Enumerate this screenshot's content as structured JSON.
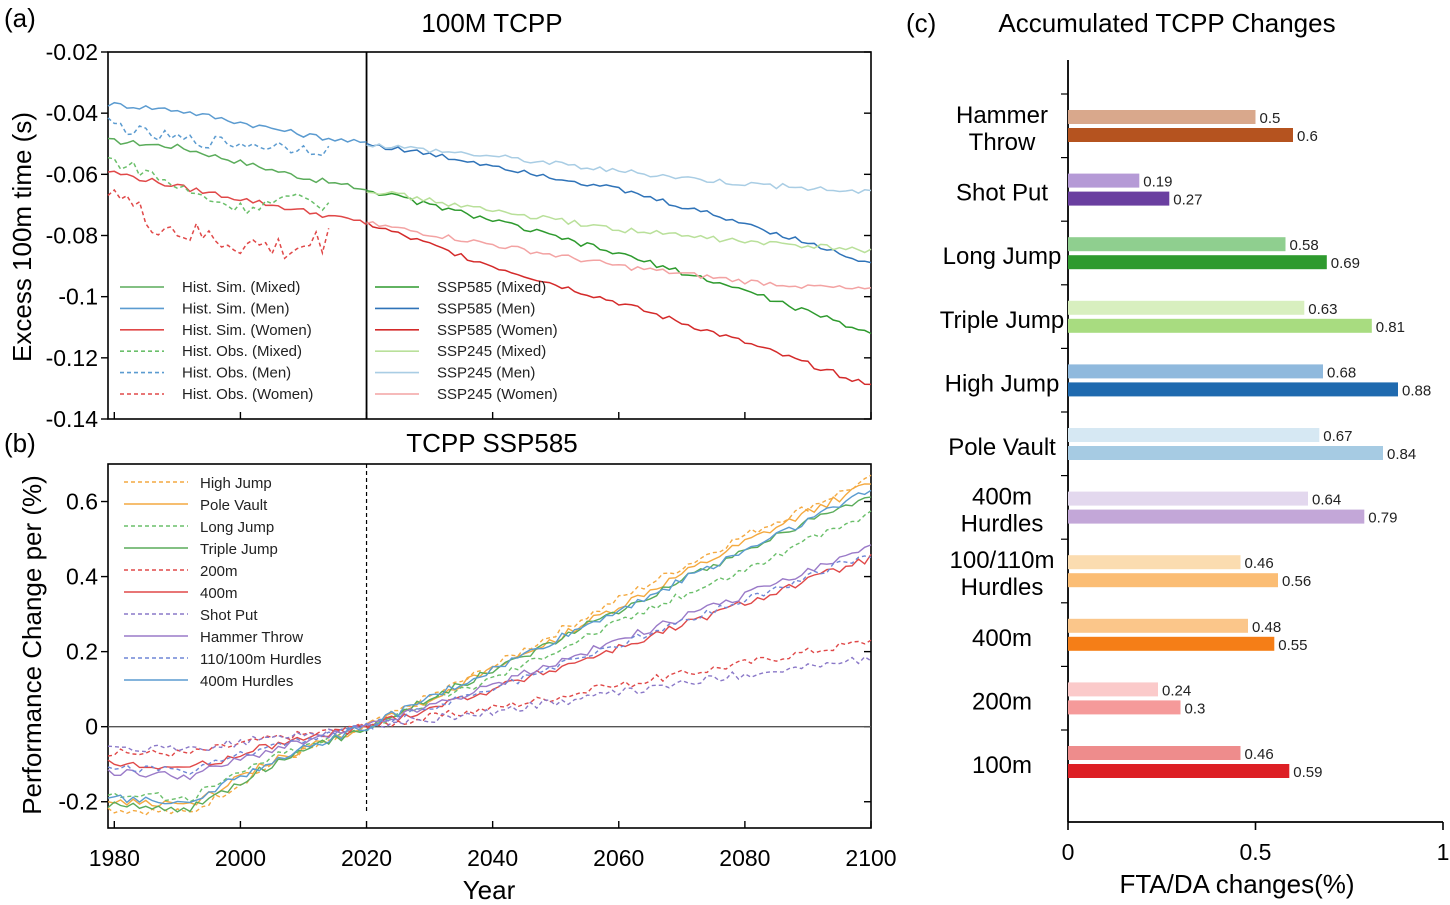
{
  "chart_data": [
    {
      "panel_label": "(a)",
      "type": "line",
      "title": "100M TCPP",
      "xlabel": "",
      "ylabel": "Excess 100m time (s)",
      "xlim": [
        1979,
        2100
      ],
      "ylim": [
        -0.14,
        -0.02
      ],
      "yticks": [
        -0.02,
        -0.04,
        -0.06,
        -0.08,
        -0.1,
        -0.12,
        -0.14
      ],
      "ytick_labels": [
        "-0.02",
        "-0.04",
        "-0.06",
        "-0.08",
        "-0.1",
        "-0.12",
        "-0.14"
      ],
      "vline_x": 2020,
      "legend": [
        "Hist. Sim. (Mixed)",
        "Hist. Sim. (Men)",
        "Hist. Sim. (Women)",
        "Hist. Obs. (Mixed)",
        "Hist. Obs. (Men)",
        "Hist. Obs. (Women)",
        "SSP585 (Mixed)",
        "SSP585 (Men)",
        "SSP585 (Women)",
        "SSP245 (Mixed)",
        "SSP245 (Men)",
        "SSP245 (Women)"
      ],
      "series": [
        {
          "name": "Hist. Sim. (Mixed)",
          "style": "solid",
          "color": "#5aac5a",
          "x": [
            1979,
            1990,
            2000,
            2010,
            2020
          ],
          "y": [
            -0.049,
            -0.051,
            -0.056,
            -0.061,
            -0.065
          ]
        },
        {
          "name": "Hist. Sim. (Men)",
          "style": "solid",
          "color": "#5b9bd0",
          "x": [
            1979,
            1990,
            2000,
            2010,
            2020
          ],
          "y": [
            -0.037,
            -0.039,
            -0.043,
            -0.047,
            -0.05
          ]
        },
        {
          "name": "Hist. Sim. (Women)",
          "style": "solid",
          "color": "#e04848",
          "x": [
            1979,
            1990,
            2000,
            2010,
            2020
          ],
          "y": [
            -0.059,
            -0.064,
            -0.068,
            -0.072,
            -0.076
          ]
        },
        {
          "name": "Hist. Obs. (Mixed)",
          "style": "dashed",
          "color": "#6abf6a",
          "x": [
            1979,
            1985,
            1992,
            2000,
            2008,
            2014
          ],
          "y": [
            -0.055,
            -0.059,
            -0.066,
            -0.071,
            -0.068,
            -0.07
          ]
        },
        {
          "name": "Hist. Obs. (Men)",
          "style": "dashed",
          "color": "#5b9bd0",
          "x": [
            1979,
            1985,
            1992,
            2000,
            2008,
            2014
          ],
          "y": [
            -0.043,
            -0.047,
            -0.049,
            -0.05,
            -0.051,
            -0.052
          ]
        },
        {
          "name": "Hist. Obs. (Women)",
          "style": "dashed",
          "color": "#e04848",
          "x": [
            1979,
            1985,
            1992,
            2000,
            2008,
            2014
          ],
          "y": [
            -0.063,
            -0.075,
            -0.08,
            -0.083,
            -0.085,
            -0.081
          ]
        },
        {
          "name": "SSP585 (Mixed)",
          "style": "solid",
          "color": "#2e9a2e",
          "x": [
            2020,
            2040,
            2060,
            2080,
            2100
          ],
          "y": [
            -0.065,
            -0.075,
            -0.086,
            -0.098,
            -0.112
          ]
        },
        {
          "name": "SSP585 (Men)",
          "style": "solid",
          "color": "#2f73b8",
          "x": [
            2020,
            2040,
            2060,
            2080,
            2100
          ],
          "y": [
            -0.05,
            -0.057,
            -0.065,
            -0.076,
            -0.089
          ]
        },
        {
          "name": "SSP585 (Women)",
          "style": "solid",
          "color": "#d42a2a",
          "x": [
            2020,
            2040,
            2060,
            2080,
            2100
          ],
          "y": [
            -0.076,
            -0.09,
            -0.102,
            -0.115,
            -0.129
          ]
        },
        {
          "name": "SSP245 (Mixed)",
          "style": "solid",
          "color": "#b9e09a",
          "x": [
            2020,
            2040,
            2060,
            2080,
            2100
          ],
          "y": [
            -0.065,
            -0.072,
            -0.078,
            -0.082,
            -0.085
          ]
        },
        {
          "name": "SSP245 (Men)",
          "style": "solid",
          "color": "#a9cde4",
          "x": [
            2020,
            2040,
            2060,
            2080,
            2100
          ],
          "y": [
            -0.05,
            -0.054,
            -0.059,
            -0.063,
            -0.066
          ]
        },
        {
          "name": "SSP245 (Women)",
          "style": "solid",
          "color": "#f3a3a3",
          "x": [
            2020,
            2040,
            2060,
            2080,
            2100
          ],
          "y": [
            -0.076,
            -0.083,
            -0.09,
            -0.095,
            -0.098
          ]
        }
      ]
    },
    {
      "panel_label": "(b)",
      "type": "line",
      "title": "TCPP SSP585",
      "xlabel": "Year",
      "ylabel": "Performance Change per (%)",
      "xlim": [
        1979,
        2100
      ],
      "ylim": [
        -0.27,
        0.7
      ],
      "xticks": [
        1980,
        2000,
        2020,
        2040,
        2060,
        2080,
        2100
      ],
      "xtick_labels": [
        "1980",
        "2000",
        "2020",
        "2040",
        "2060",
        "2080",
        "2100"
      ],
      "yticks": [
        -0.2,
        0,
        0.2,
        0.4,
        0.6
      ],
      "ytick_labels": [
        "-0.2",
        "0",
        "0.2",
        "0.4",
        "0.6"
      ],
      "vline_x": 2020,
      "hline_y": 0,
      "legend": [
        "High Jump",
        "Pole Vault",
        "Long Jump",
        "Triple Jump",
        "200m",
        "400m",
        "Shot Put",
        "Hammer Throw",
        "110/100m Hurdles",
        "400m Hurdles"
      ],
      "series": [
        {
          "name": "High Jump",
          "style": "dashed",
          "color": "#f4a940",
          "x": [
            1979,
            1992,
            2005,
            2020,
            2040,
            2060,
            2080,
            2100
          ],
          "y": [
            -0.22,
            -0.23,
            -0.1,
            0.0,
            0.16,
            0.34,
            0.51,
            0.66
          ]
        },
        {
          "name": "Pole Vault",
          "style": "solid",
          "color": "#f4a940",
          "x": [
            1979,
            1992,
            2005,
            2020,
            2040,
            2060,
            2080,
            2100
          ],
          "y": [
            -0.2,
            -0.21,
            -0.09,
            0.0,
            0.15,
            0.32,
            0.49,
            0.65
          ]
        },
        {
          "name": "Long Jump",
          "style": "dashed",
          "color": "#6abf6a",
          "x": [
            1979,
            1992,
            2005,
            2020,
            2040,
            2060,
            2080,
            2100
          ],
          "y": [
            -0.18,
            -0.19,
            -0.08,
            0.0,
            0.13,
            0.28,
            0.42,
            0.57
          ]
        },
        {
          "name": "Triple Jump",
          "style": "solid",
          "color": "#5aac5a",
          "x": [
            1979,
            1992,
            2005,
            2020,
            2040,
            2060,
            2080,
            2100
          ],
          "y": [
            -0.21,
            -0.22,
            -0.1,
            0.0,
            0.15,
            0.31,
            0.47,
            0.62
          ]
        },
        {
          "name": "200m",
          "style": "dashed",
          "color": "#e04848",
          "x": [
            1979,
            1992,
            2005,
            2020,
            2040,
            2060,
            2080,
            2100
          ],
          "y": [
            -0.07,
            -0.07,
            -0.03,
            0.0,
            0.05,
            0.11,
            0.17,
            0.23
          ]
        },
        {
          "name": "400m",
          "style": "solid",
          "color": "#e04848",
          "x": [
            1979,
            1992,
            2005,
            2020,
            2040,
            2060,
            2080,
            2100
          ],
          "y": [
            -0.1,
            -0.11,
            -0.05,
            0.0,
            0.1,
            0.21,
            0.33,
            0.45
          ]
        },
        {
          "name": "Shot Put",
          "style": "dashed",
          "color": "#8a78c8",
          "x": [
            1979,
            1992,
            2005,
            2020,
            2040,
            2060,
            2080,
            2100
          ],
          "y": [
            -0.06,
            -0.06,
            -0.03,
            0.0,
            0.04,
            0.09,
            0.14,
            0.18
          ]
        },
        {
          "name": "Hammer Throw",
          "style": "solid",
          "color": "#9a7ac8",
          "x": [
            1979,
            1992,
            2005,
            2020,
            2040,
            2060,
            2080,
            2100
          ],
          "y": [
            -0.12,
            -0.13,
            -0.06,
            0.0,
            0.11,
            0.23,
            0.35,
            0.48
          ]
        },
        {
          "name": "110/100m Hurdles",
          "style": "dashed",
          "color": "#6f86d6",
          "x": [
            1979,
            1992,
            2005,
            2020,
            2040,
            2060,
            2080,
            2100
          ],
          "y": [
            -0.11,
            -0.12,
            -0.05,
            0.0,
            0.1,
            0.22,
            0.34,
            0.46
          ]
        },
        {
          "name": "400m Hurdles",
          "style": "solid",
          "color": "#5b9bd0",
          "x": [
            1979,
            1992,
            2005,
            2020,
            2040,
            2060,
            2080,
            2100
          ],
          "y": [
            -0.19,
            -0.2,
            -0.09,
            0.0,
            0.15,
            0.31,
            0.47,
            0.63
          ]
        }
      ]
    },
    {
      "panel_label": "(c)",
      "type": "bar",
      "orientation": "horizontal",
      "title": "Accumulated TCPP Changes",
      "xlabel": "FTA/DA changes(%)",
      "ylabel": "",
      "xlim": [
        0,
        1
      ],
      "xticks": [
        0,
        0.5,
        1
      ],
      "xtick_labels": [
        "0",
        "0.5",
        "1"
      ],
      "categories": [
        [
          "Hammer",
          "Throw"
        ],
        [
          "Shot Put"
        ],
        [
          "Long Jump"
        ],
        [
          "Triple Jump"
        ],
        [
          "High Jump"
        ],
        [
          "Pole Vault"
        ],
        [
          "400m",
          "Hurdles"
        ],
        [
          "100/110m",
          "Hurdles"
        ],
        [
          "400m"
        ],
        [
          "200m"
        ],
        [
          "100m"
        ]
      ],
      "bars": [
        {
          "a": 0.5,
          "a_label": "0.5",
          "a_color": "#d9a88c",
          "b": 0.6,
          "b_label": "0.6",
          "b_color": "#b5531f"
        },
        {
          "a": 0.19,
          "a_label": "0.19",
          "a_color": "#b59ad6",
          "b": 0.27,
          "b_label": "0.27",
          "b_color": "#6a3fa0"
        },
        {
          "a": 0.58,
          "a_label": "0.58",
          "a_color": "#8fcf8f",
          "b": 0.69,
          "b_label": "0.69",
          "b_color": "#2e9a2e"
        },
        {
          "a": 0.63,
          "a_label": "0.63",
          "a_color": "#d8efbf",
          "b": 0.81,
          "b_label": "0.81",
          "b_color": "#a8dc80"
        },
        {
          "a": 0.68,
          "a_label": "0.68",
          "a_color": "#8fb9dd",
          "b": 0.88,
          "b_label": "0.88",
          "b_color": "#1f6aaf"
        },
        {
          "a": 0.67,
          "a_label": "0.67",
          "a_color": "#d6e8f3",
          "b": 0.84,
          "b_label": "0.84",
          "b_color": "#a6cbe3"
        },
        {
          "a": 0.64,
          "a_label": "0.64",
          "a_color": "#e3d8ee",
          "b": 0.79,
          "b_label": "0.79",
          "b_color": "#c3a7d8"
        },
        {
          "a": 0.46,
          "a_label": "0.46",
          "a_color": "#fbdcb0",
          "b": 0.56,
          "b_label": "0.56",
          "b_color": "#fbbd74"
        },
        {
          "a": 0.48,
          "a_label": "0.48",
          "a_color": "#fbc68a",
          "b": 0.55,
          "b_label": "0.55",
          "b_color": "#f57e17"
        },
        {
          "a": 0.24,
          "a_label": "0.24",
          "a_color": "#fbcaca",
          "b": 0.3,
          "b_label": "0.3",
          "b_color": "#f59a9a"
        },
        {
          "a": 0.46,
          "a_label": "0.46",
          "a_color": "#ee8c8c",
          "b": 0.59,
          "b_label": "0.59",
          "b_color": "#dd1f25"
        }
      ]
    }
  ]
}
